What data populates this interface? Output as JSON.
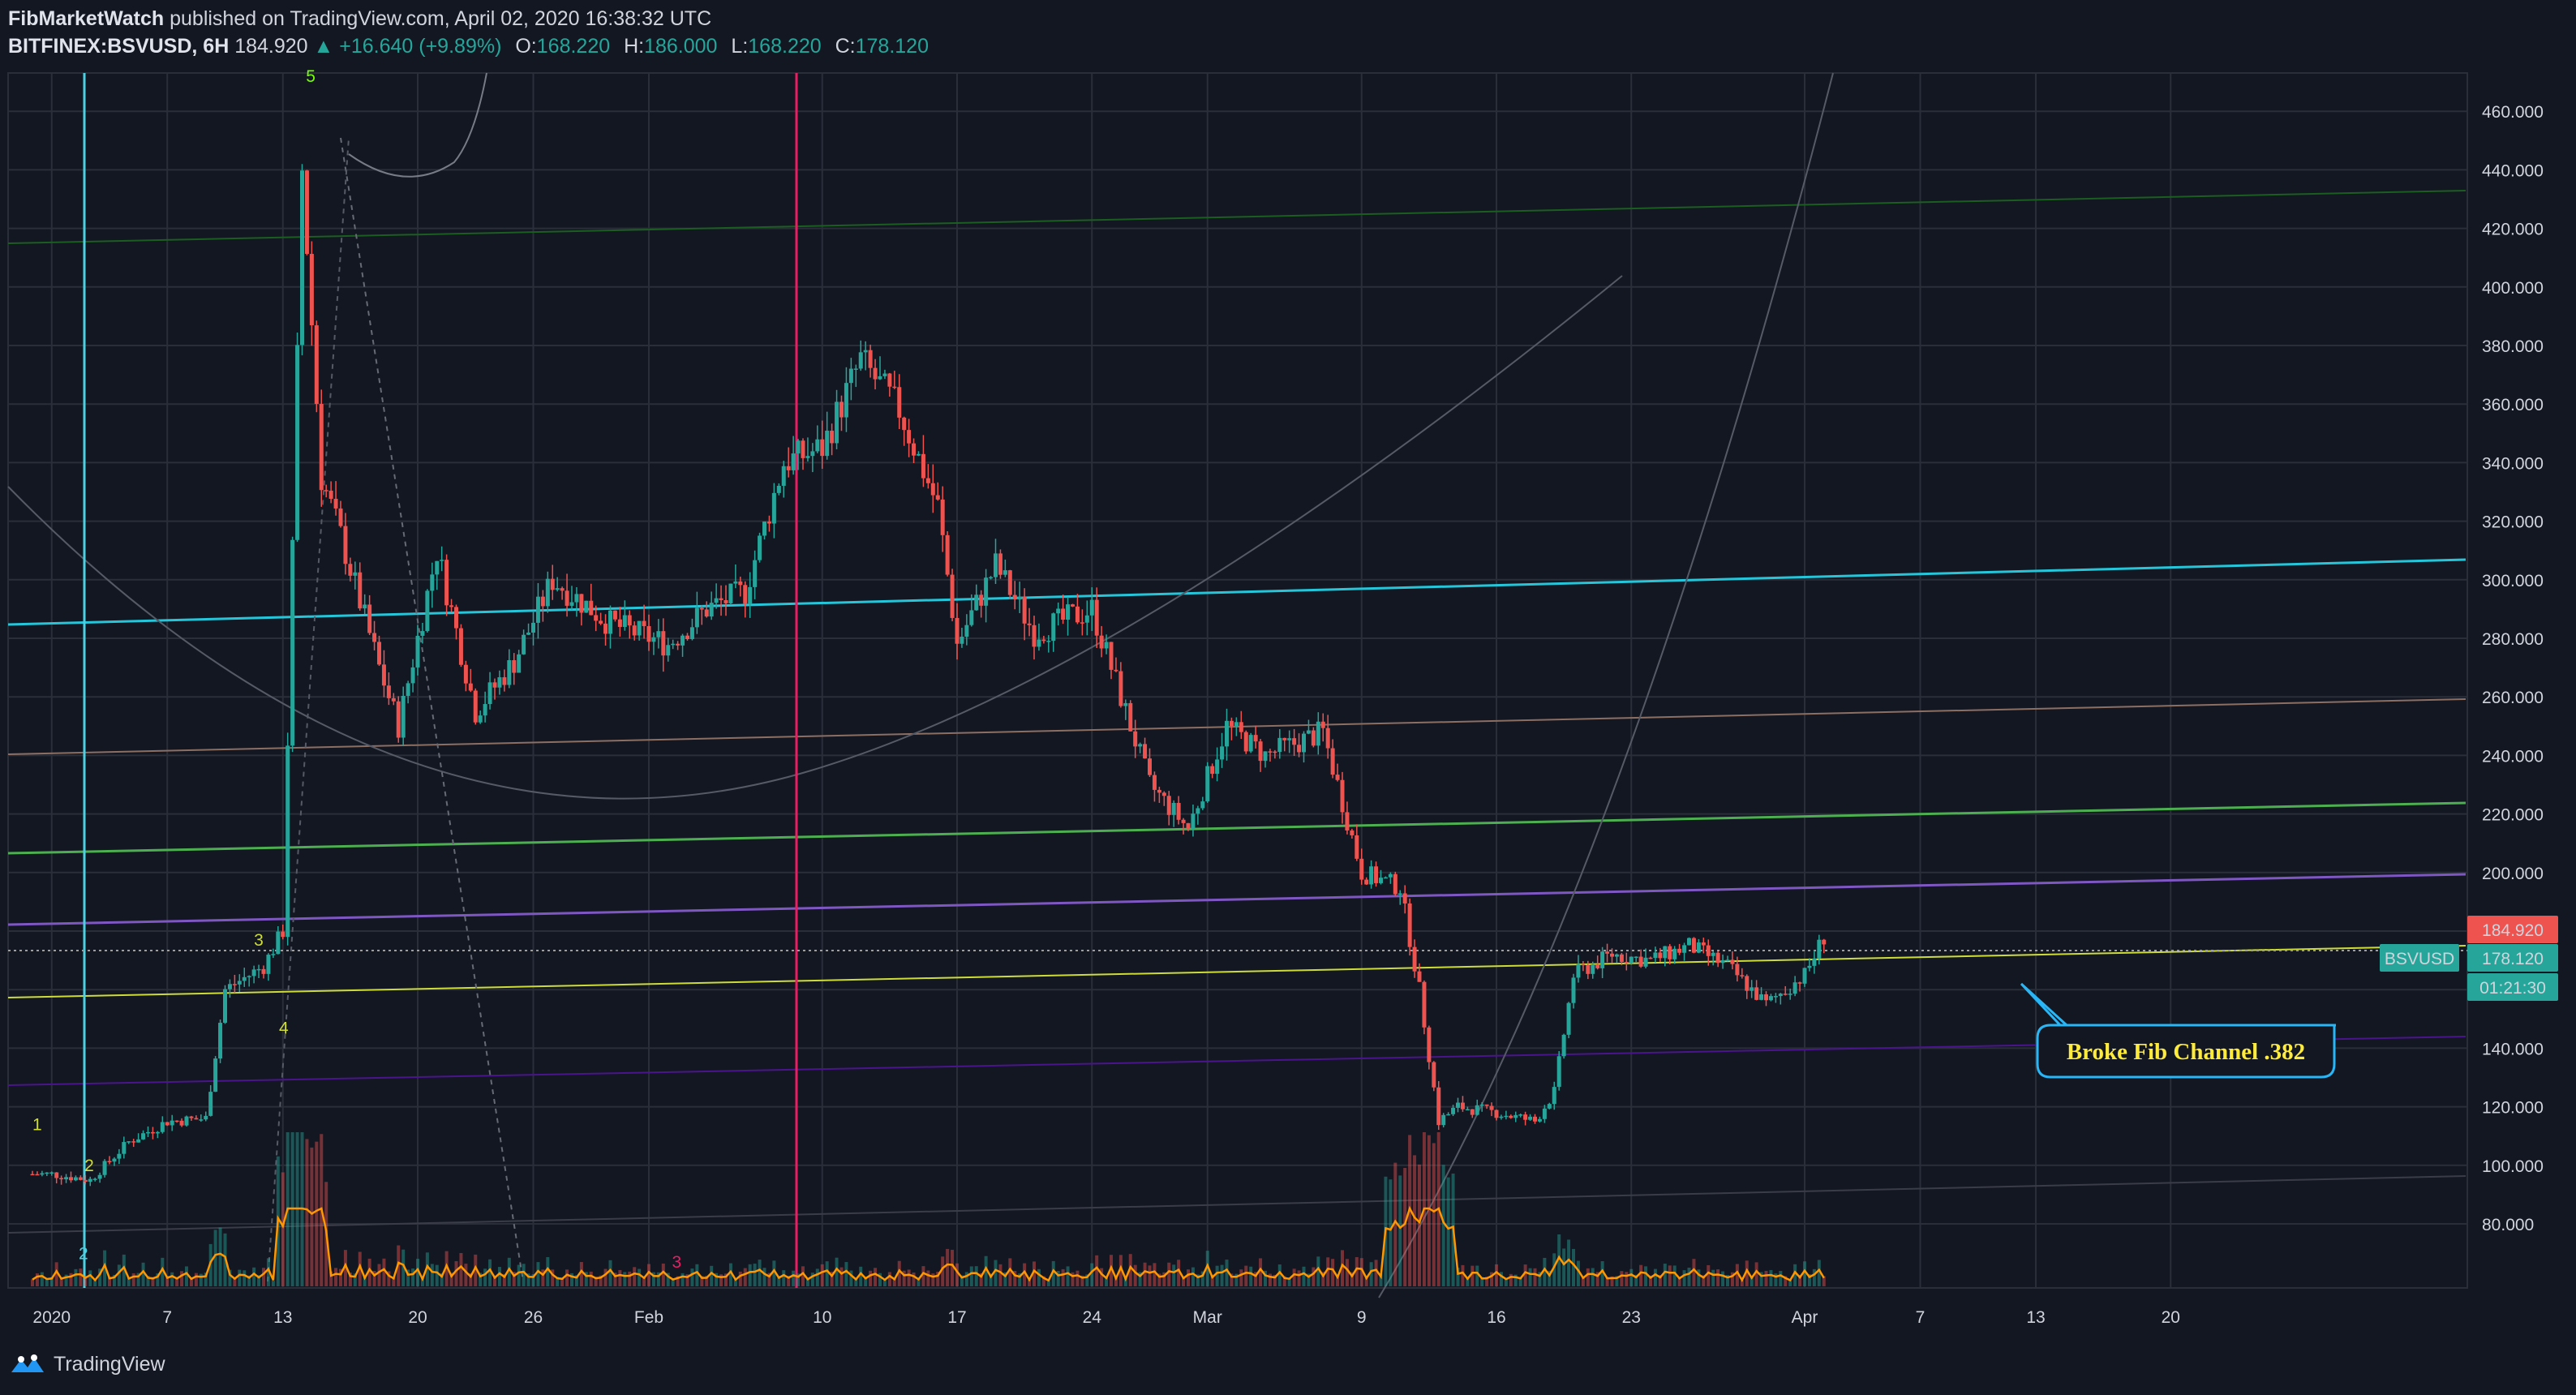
{
  "header": {
    "author": "FibMarketWatch",
    "published": "published on TradingView.com, April 02, 2020 16:38:32 UTC",
    "symbol": "BITFINEX:BSVUSD, 6H",
    "last": "184.920",
    "change": "+16.640 (+9.89%)",
    "o_label": "O:",
    "o": "168.220",
    "h_label": "H:",
    "h": "186.000",
    "l_label": "L:",
    "l": "168.220",
    "c_label": "C:",
    "c": "178.120"
  },
  "price_tags": {
    "last": "184.920",
    "symbol": "BSVUSD",
    "close": "178.120",
    "countdown": "01:21:30"
  },
  "annotation": "Broke Fib Channel .382",
  "footer": {
    "brand": "TradingView"
  },
  "colors": {
    "background": "#131722",
    "up": "#26a69a",
    "down": "#ef5350",
    "grid": "#2a2e39",
    "callout": "#29b6f6",
    "callout_text": "#ffeb3b"
  },
  "chart_data": {
    "type": "candlestick",
    "interval": "6H",
    "y_axis": {
      "ticks": [
        80,
        100,
        120,
        140,
        160,
        180,
        200,
        220,
        240,
        260,
        280,
        300,
        320,
        340,
        360,
        380,
        400,
        420,
        440,
        460
      ],
      "tick_labels": [
        "80.000",
        "100.000",
        "120.000",
        "140.000",
        "160.000",
        "180.000",
        "200.000",
        "220.000",
        "240.000",
        "260.000",
        "280.000",
        "300.000",
        "320.000",
        "340.000",
        "360.000",
        "380.000",
        "400.000",
        "420.000",
        "440.000",
        "460.000"
      ]
    },
    "x_axis": {
      "tick_labels": [
        "2020",
        "7",
        "13",
        "20",
        "26",
        "Feb",
        "10",
        "17",
        "24",
        "Mar",
        "9",
        "16",
        "23",
        "Apr",
        "7",
        "13",
        "20"
      ]
    },
    "price_path": [
      [
        "2019-12-31",
        97
      ],
      [
        "2020-01-01",
        97
      ],
      [
        "2020-01-03",
        95
      ],
      [
        "2020-01-05",
        108
      ],
      [
        "2020-01-07",
        115
      ],
      [
        "2020-01-09",
        116
      ],
      [
        "2020-01-10",
        160
      ],
      [
        "2020-01-12",
        168
      ],
      [
        "2020-01-13",
        180
      ],
      [
        "2020-01-14",
        440
      ],
      [
        "2020-01-15",
        335
      ],
      [
        "2020-01-16",
        315
      ],
      [
        "2020-01-18",
        270
      ],
      [
        "2020-01-19",
        250
      ],
      [
        "2020-01-21",
        310
      ],
      [
        "2020-01-23",
        255
      ],
      [
        "2020-01-25",
        272
      ],
      [
        "2020-01-27",
        300
      ],
      [
        "2020-01-30",
        285
      ],
      [
        "2020-02-02",
        278
      ],
      [
        "2020-02-04",
        290
      ],
      [
        "2020-02-06",
        296
      ],
      [
        "2020-02-08",
        340
      ],
      [
        "2020-02-10",
        345
      ],
      [
        "2020-02-12",
        375
      ],
      [
        "2020-02-14",
        358
      ],
      [
        "2020-02-16",
        325
      ],
      [
        "2020-02-17",
        278
      ],
      [
        "2020-02-19",
        305
      ],
      [
        "2020-02-21",
        282
      ],
      [
        "2020-02-24",
        290
      ],
      [
        "2020-02-27",
        230
      ],
      [
        "2020-02-29",
        215
      ],
      [
        "2020-03-02",
        250
      ],
      [
        "2020-03-04",
        240
      ],
      [
        "2020-03-07",
        248
      ],
      [
        "2020-03-09",
        200
      ],
      [
        "2020-03-11",
        195
      ],
      [
        "2020-03-12",
        160
      ],
      [
        "2020-03-13",
        115
      ],
      [
        "2020-03-14",
        120
      ],
      [
        "2020-03-16",
        118
      ],
      [
        "2020-03-18",
        115
      ],
      [
        "2020-03-19",
        125
      ],
      [
        "2020-03-20",
        165
      ],
      [
        "2020-03-22",
        172
      ],
      [
        "2020-03-24",
        170
      ],
      [
        "2020-03-26",
        175
      ],
      [
        "2020-03-28",
        168
      ],
      [
        "2020-03-30",
        155
      ],
      [
        "2020-04-01",
        165
      ],
      [
        "2020-04-02",
        178
      ]
    ],
    "ylim": [
      60,
      475
    ],
    "legend": null,
    "annotations": [
      "Broke Fib Channel .382"
    ],
    "wave_labels": [
      "1",
      "2",
      "3",
      "4",
      "5",
      "2",
      "3"
    ]
  }
}
